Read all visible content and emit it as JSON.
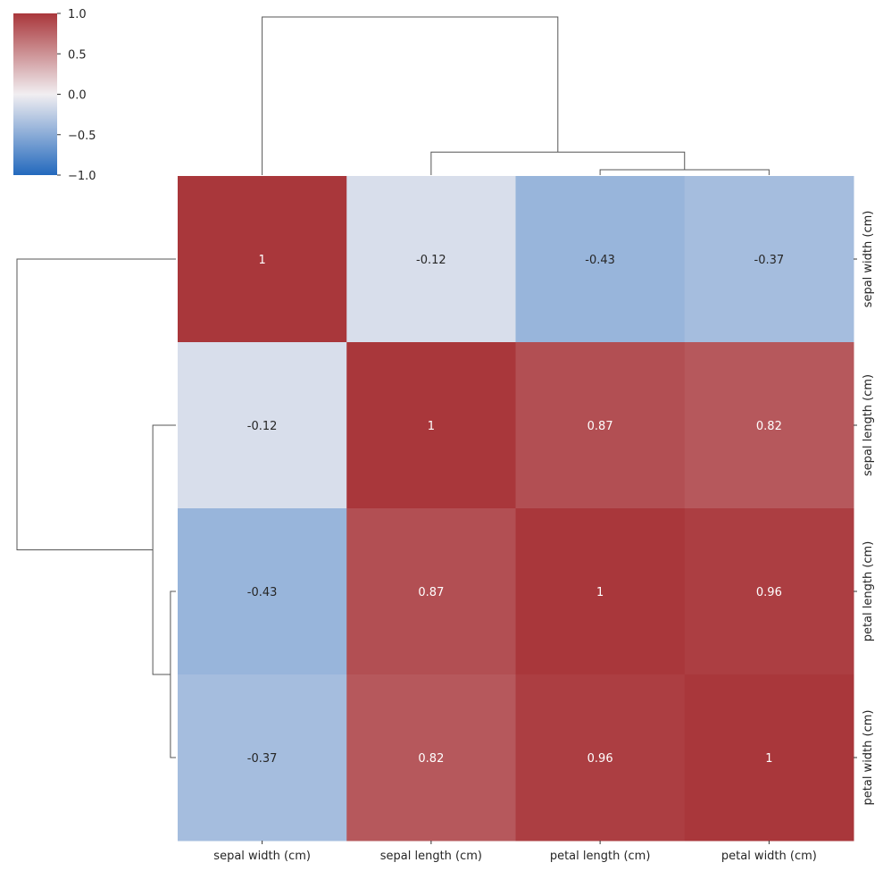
{
  "chart_data": {
    "type": "heatmap",
    "title": "",
    "labels": [
      "sepal width (cm)",
      "sepal length (cm)",
      "petal length (cm)",
      "petal width (cm)"
    ],
    "values": [
      [
        1,
        -0.12,
        -0.43,
        -0.37
      ],
      [
        -0.12,
        1,
        0.87,
        0.82
      ],
      [
        -0.43,
        0.87,
        1,
        0.96
      ],
      [
        -0.37,
        0.82,
        0.96,
        1
      ]
    ],
    "cell_labels": [
      [
        "1",
        "-0.12",
        "-0.43",
        "-0.37"
      ],
      [
        "-0.12",
        "1",
        "0.87",
        "0.82"
      ],
      [
        "-0.43",
        "0.87",
        "1",
        "0.96"
      ],
      [
        "-0.37",
        "0.82",
        "0.96",
        "1"
      ]
    ],
    "colormap": "vlag",
    "vmin": -1.0,
    "vmax": 1.0,
    "colorbar_ticks": [
      1.0,
      0.5,
      0.0,
      -0.5,
      -1.0
    ],
    "colorbar_tick_labels": [
      "1.0",
      "0.5",
      "0.0",
      "−0.5",
      "−1.0"
    ],
    "dendrogram": {
      "linkage": [
        {
          "a": 2,
          "b": 3,
          "height": 0.04
        },
        {
          "a": 1,
          "b": "c0",
          "height": 0.17
        },
        {
          "a": 0,
          "b": "c1",
          "height": 1.17
        }
      ]
    },
    "colors": {
      "cmap_low": "#2369bd",
      "cmap_mid": "#f1eef1",
      "cmap_high": "#a9373b",
      "dendrogram_line": "#555555",
      "text_dark": "#262626",
      "text_light": "#ffffff"
    }
  }
}
